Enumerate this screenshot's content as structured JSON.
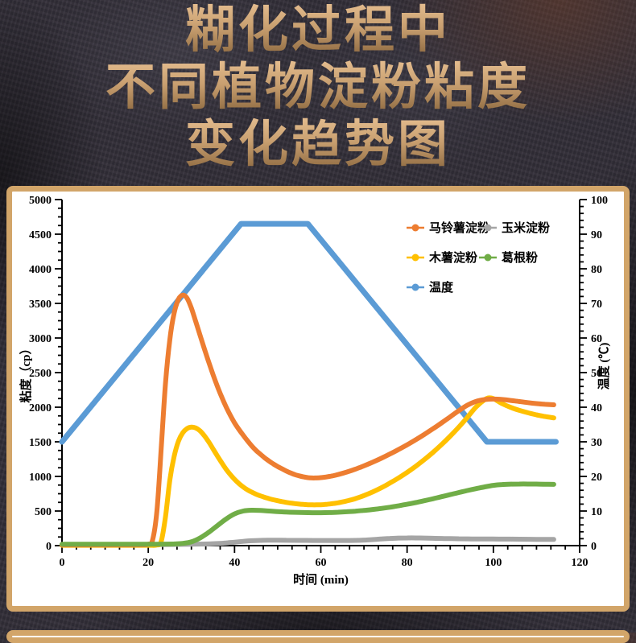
{
  "title": {
    "lines": [
      "糊化过程中",
      "不同植物淀粉粘度",
      "变化趋势图"
    ]
  },
  "theme": {
    "title_gold_top": "#e2ba8c",
    "title_gold_bottom": "#8d6940",
    "panel_border": "#d2a569",
    "panel_background": "#ffffff",
    "page_background": "#322e38",
    "axis_color": "#000000"
  },
  "chart_data": {
    "type": "line",
    "title": "糊化过程中不同植物淀粉粘度变化趋势图",
    "xlabel": "时间 (min)",
    "ylabel_left": "粘度（cp）",
    "ylabel_right": "温度 (℃)",
    "xlim": [
      0,
      120
    ],
    "x_major_step": 20,
    "x_minor_divisions": 6,
    "ylim_left": [
      0,
      5000
    ],
    "y_left_major_step": 500,
    "y_left_minor_step": 125,
    "ylim_right": [
      0,
      100
    ],
    "y_right_major_step": 10,
    "y_right_minor_step": 2,
    "grid": false,
    "legend_position": "top-right-inside",
    "series": [
      {
        "id": "potato-starch",
        "name": "马铃薯淀粉",
        "color": "#ED7D31",
        "axis": "left",
        "smooth": true,
        "points": [
          [
            0,
            10
          ],
          [
            4,
            10
          ],
          [
            8,
            10
          ],
          [
            12,
            10
          ],
          [
            16,
            10
          ],
          [
            19,
            12
          ],
          [
            20,
            20
          ],
          [
            21,
            80
          ],
          [
            22,
            500
          ],
          [
            23,
            1400
          ],
          [
            24,
            2350
          ],
          [
            25,
            2980
          ],
          [
            26,
            3360
          ],
          [
            27,
            3560
          ],
          [
            28,
            3620
          ],
          [
            29,
            3575
          ],
          [
            30,
            3430
          ],
          [
            31,
            3240
          ],
          [
            32,
            3040
          ],
          [
            33,
            2845
          ],
          [
            34,
            2655
          ],
          [
            35,
            2475
          ],
          [
            36,
            2305
          ],
          [
            37,
            2150
          ],
          [
            38,
            2010
          ],
          [
            39,
            1885
          ],
          [
            40,
            1775
          ],
          [
            41,
            1680
          ],
          [
            42,
            1595
          ],
          [
            43,
            1515
          ],
          [
            44,
            1440
          ],
          [
            45,
            1375
          ],
          [
            46,
            1320
          ],
          [
            47,
            1268
          ],
          [
            48,
            1222
          ],
          [
            49,
            1180
          ],
          [
            50,
            1143
          ],
          [
            51,
            1110
          ],
          [
            52,
            1078
          ],
          [
            53,
            1050
          ],
          [
            54,
            1026
          ],
          [
            55,
            1008
          ],
          [
            56,
            993
          ],
          [
            57,
            983
          ],
          [
            58,
            978
          ],
          [
            59,
            978
          ],
          [
            60,
            982
          ],
          [
            61,
            990
          ],
          [
            62,
            1000
          ],
          [
            63,
            1012
          ],
          [
            64,
            1027
          ],
          [
            65,
            1044
          ],
          [
            66,
            1063
          ],
          [
            67,
            1083
          ],
          [
            68,
            1105
          ],
          [
            69,
            1128
          ],
          [
            70,
            1152
          ],
          [
            72,
            1205
          ],
          [
            74,
            1262
          ],
          [
            76,
            1323
          ],
          [
            78,
            1388
          ],
          [
            80,
            1457
          ],
          [
            82,
            1530
          ],
          [
            84,
            1607
          ],
          [
            86,
            1688
          ],
          [
            88,
            1773
          ],
          [
            90,
            1862
          ],
          [
            92,
            1950
          ],
          [
            94,
            2030
          ],
          [
            96,
            2085
          ],
          [
            98,
            2110
          ],
          [
            100,
            2118
          ],
          [
            102,
            2112
          ],
          [
            104,
            2098
          ],
          [
            106,
            2082
          ],
          [
            108,
            2066
          ],
          [
            110,
            2052
          ],
          [
            112,
            2042
          ],
          [
            114,
            2035
          ]
        ]
      },
      {
        "id": "corn-starch",
        "name": "玉米淀粉",
        "color": "#A5A5A5",
        "axis": "left",
        "smooth": true,
        "points": [
          [
            0,
            12
          ],
          [
            5,
            12
          ],
          [
            10,
            12
          ],
          [
            15,
            13
          ],
          [
            20,
            14
          ],
          [
            25,
            16
          ],
          [
            30,
            20
          ],
          [
            34,
            25
          ],
          [
            36,
            30
          ],
          [
            38,
            38
          ],
          [
            40,
            50
          ],
          [
            42,
            62
          ],
          [
            44,
            71
          ],
          [
            46,
            76
          ],
          [
            48,
            78
          ],
          [
            50,
            78
          ],
          [
            52,
            77
          ],
          [
            55,
            76
          ],
          [
            58,
            75
          ],
          [
            60,
            74
          ],
          [
            62,
            74
          ],
          [
            65,
            74
          ],
          [
            68,
            76
          ],
          [
            70,
            80
          ],
          [
            72,
            87
          ],
          [
            74,
            96
          ],
          [
            76,
            104
          ],
          [
            78,
            109
          ],
          [
            80,
            111
          ],
          [
            82,
            111
          ],
          [
            84,
            109
          ],
          [
            86,
            106
          ],
          [
            88,
            103
          ],
          [
            90,
            101
          ],
          [
            92,
            99
          ],
          [
            95,
            97
          ],
          [
            98,
            96
          ],
          [
            100,
            95
          ],
          [
            103,
            94
          ],
          [
            106,
            93
          ],
          [
            110,
            91
          ],
          [
            114,
            90
          ]
        ]
      },
      {
        "id": "cassava-starch",
        "name": "木薯淀粉",
        "color": "#FFC000",
        "axis": "left",
        "smooth": true,
        "points": [
          [
            0,
            5
          ],
          [
            4,
            5
          ],
          [
            8,
            5
          ],
          [
            12,
            5
          ],
          [
            16,
            5
          ],
          [
            20,
            5
          ],
          [
            22,
            8
          ],
          [
            23,
            60
          ],
          [
            24,
            420
          ],
          [
            25,
            950
          ],
          [
            26,
            1290
          ],
          [
            27,
            1510
          ],
          [
            28,
            1630
          ],
          [
            29,
            1692
          ],
          [
            30,
            1712
          ],
          [
            31,
            1700
          ],
          [
            32,
            1658
          ],
          [
            33,
            1588
          ],
          [
            34,
            1500
          ],
          [
            35,
            1400
          ],
          [
            36,
            1298
          ],
          [
            37,
            1200
          ],
          [
            38,
            1108
          ],
          [
            39,
            1028
          ],
          [
            40,
            958
          ],
          [
            41,
            898
          ],
          [
            42,
            848
          ],
          [
            43,
            806
          ],
          [
            44,
            772
          ],
          [
            45,
            743
          ],
          [
            46,
            719
          ],
          [
            47,
            698
          ],
          [
            48,
            679
          ],
          [
            49,
            663
          ],
          [
            50,
            649
          ],
          [
            51,
            636
          ],
          [
            52,
            625
          ],
          [
            53,
            615
          ],
          [
            54,
            607
          ],
          [
            55,
            600
          ],
          [
            56,
            595
          ],
          [
            57,
            591
          ],
          [
            58,
            589
          ],
          [
            59,
            589
          ],
          [
            60,
            591
          ],
          [
            61,
            595
          ],
          [
            62,
            601
          ],
          [
            63,
            609
          ],
          [
            64,
            619
          ],
          [
            65,
            631
          ],
          [
            66,
            645
          ],
          [
            67,
            661
          ],
          [
            68,
            679
          ],
          [
            69,
            700
          ],
          [
            70,
            723
          ],
          [
            72,
            775
          ],
          [
            74,
            835
          ],
          [
            76,
            903
          ],
          [
            78,
            977
          ],
          [
            80,
            1058
          ],
          [
            82,
            1147
          ],
          [
            84,
            1243
          ],
          [
            86,
            1347
          ],
          [
            88,
            1460
          ],
          [
            90,
            1582
          ],
          [
            92,
            1714
          ],
          [
            94,
            1856
          ],
          [
            96,
            2005
          ],
          [
            98,
            2110
          ],
          [
            99,
            2135
          ],
          [
            100,
            2125
          ],
          [
            101,
            2090
          ],
          [
            102,
            2052
          ],
          [
            104,
            1998
          ],
          [
            106,
            1955
          ],
          [
            108,
            1920
          ],
          [
            110,
            1890
          ],
          [
            112,
            1865
          ],
          [
            114,
            1845
          ]
        ]
      },
      {
        "id": "kudzu-powder",
        "name": "葛根粉",
        "color": "#70AD47",
        "axis": "left",
        "smooth": true,
        "points": [
          [
            0,
            20
          ],
          [
            5,
            20
          ],
          [
            10,
            20
          ],
          [
            15,
            20
          ],
          [
            20,
            20
          ],
          [
            24,
            22
          ],
          [
            26,
            25
          ],
          [
            28,
            32
          ],
          [
            30,
            55
          ],
          [
            32,
            110
          ],
          [
            34,
            192
          ],
          [
            36,
            288
          ],
          [
            38,
            383
          ],
          [
            40,
            458
          ],
          [
            42,
            500
          ],
          [
            44,
            512
          ],
          [
            46,
            508
          ],
          [
            48,
            500
          ],
          [
            50,
            492
          ],
          [
            52,
            486
          ],
          [
            54,
            481
          ],
          [
            56,
            478
          ],
          [
            58,
            476
          ],
          [
            60,
            476
          ],
          [
            62,
            478
          ],
          [
            64,
            483
          ],
          [
            66,
            490
          ],
          [
            68,
            498
          ],
          [
            70,
            509
          ],
          [
            72,
            522
          ],
          [
            74,
            537
          ],
          [
            76,
            555
          ],
          [
            78,
            575
          ],
          [
            80,
            598
          ],
          [
            82,
            622
          ],
          [
            84,
            649
          ],
          [
            86,
            677
          ],
          [
            88,
            707
          ],
          [
            90,
            737
          ],
          [
            92,
            767
          ],
          [
            94,
            796
          ],
          [
            96,
            823
          ],
          [
            98,
            849
          ],
          [
            100,
            871
          ],
          [
            102,
            883
          ],
          [
            104,
            888
          ],
          [
            106,
            890
          ],
          [
            108,
            890
          ],
          [
            110,
            889
          ],
          [
            112,
            887
          ],
          [
            114,
            885
          ]
        ]
      },
      {
        "id": "temperature",
        "name": "温度",
        "color": "#5B9BD5",
        "axis": "right",
        "smooth": false,
        "points": [
          [
            0,
            30
          ],
          [
            41.5,
            93
          ],
          [
            57,
            93
          ],
          [
            98.5,
            30
          ],
          [
            114.5,
            30
          ]
        ]
      }
    ]
  }
}
